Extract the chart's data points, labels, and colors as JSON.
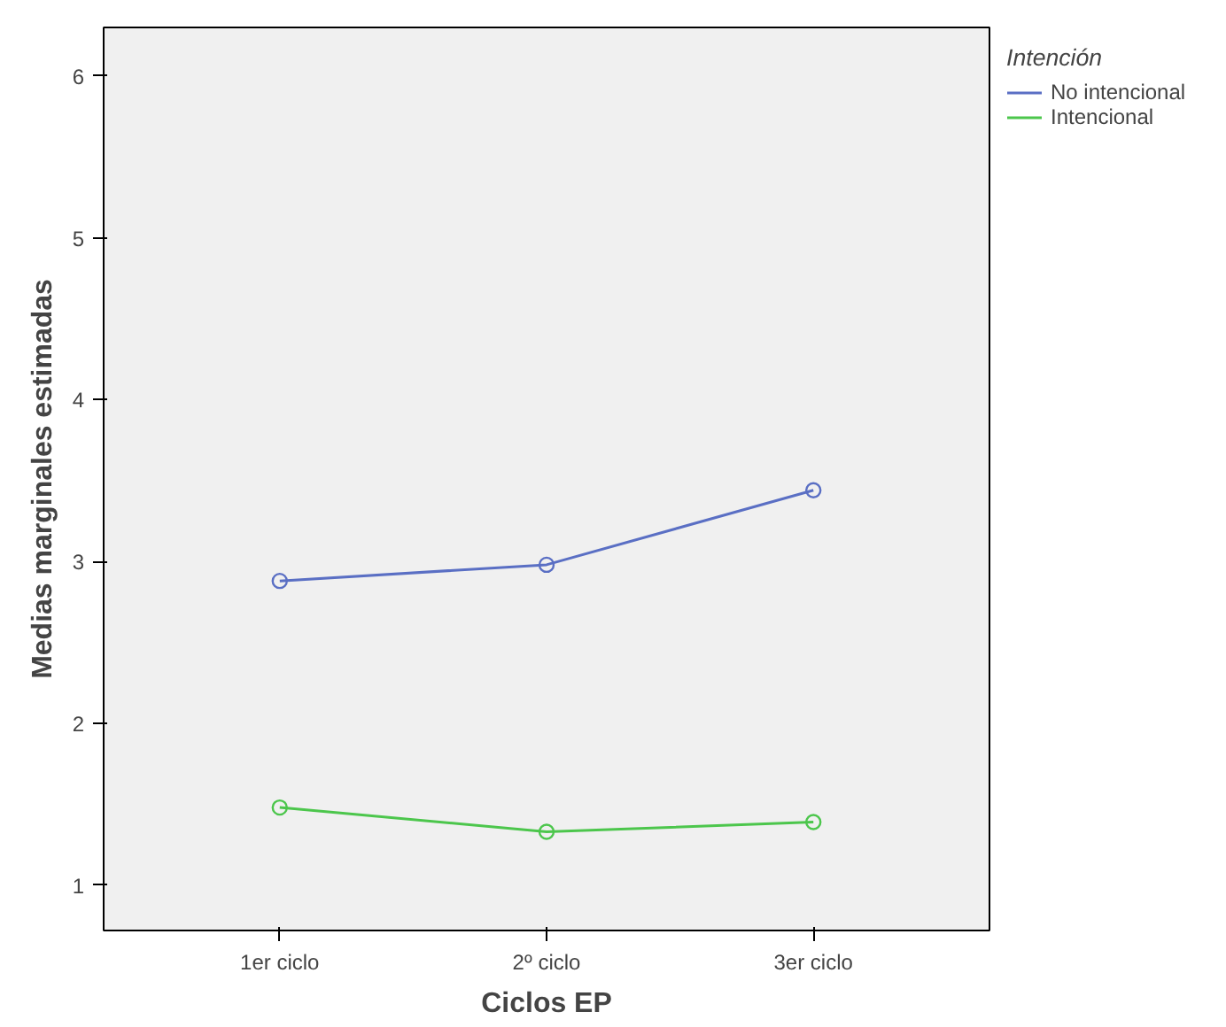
{
  "chart_data": {
    "type": "line",
    "xlabel": "Ciclos EP",
    "ylabel": "Medias marginales estimadas",
    "legend_title": "Intención",
    "categories": [
      "1er ciclo",
      "2º ciclo",
      "3er ciclo"
    ],
    "series": [
      {
        "name": "No intencional",
        "color": "#5a6fc4",
        "values": [
          2.88,
          2.98,
          3.44
        ]
      },
      {
        "name": "Intencional",
        "color": "#4cc64c",
        "values": [
          1.48,
          1.33,
          1.39
        ]
      }
    ],
    "ylim": [
      0.72,
      6.3
    ],
    "yticks": [
      1,
      2,
      3,
      4,
      5,
      6
    ],
    "grid": false,
    "legend": "top right",
    "marker": "circle",
    "line_style": "solid"
  }
}
